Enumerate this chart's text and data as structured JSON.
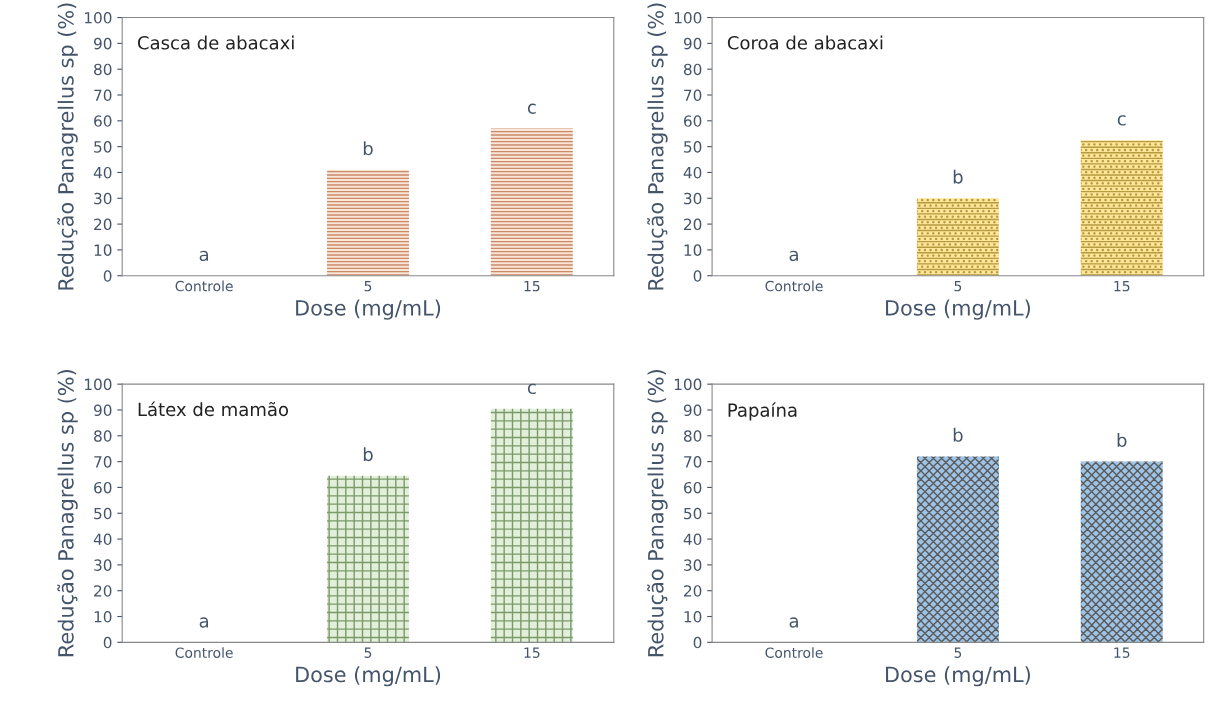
{
  "chart_data": [
    {
      "type": "bar",
      "title": "Casca de abacaxi",
      "xlabel": "Dose (mg/mL)",
      "ylabel": "Redução Panagrellus sp (%)",
      "categories": [
        "Controle",
        "5",
        "15"
      ],
      "values": [
        0,
        41,
        57
      ],
      "color": "#fbe5d6",
      "ylim": [
        0,
        100
      ],
      "yticks": [
        0,
        10,
        20,
        30,
        40,
        50,
        60,
        70,
        80,
        90,
        100
      ],
      "grid": false,
      "legend": false,
      "annotations": [
        {
          "text": "a",
          "x": "Controle",
          "y": 0
        },
        {
          "text": "b",
          "x": "5",
          "y": 41
        },
        {
          "text": "c",
          "x": "15",
          "y": 57
        }
      ]
    },
    {
      "type": "bar",
      "title": "Coroa de abacaxi",
      "xlabel": "Dose (mg/mL)",
      "ylabel": "Redução Panagrellus sp (%)",
      "categories": [
        "Controle",
        "5",
        "15"
      ],
      "values": [
        0,
        30,
        52.5
      ],
      "color": "#ffe699",
      "ylim": [
        0,
        100
      ],
      "yticks": [
        0,
        10,
        20,
        30,
        40,
        50,
        60,
        70,
        80,
        90,
        100
      ],
      "grid": false,
      "legend": false,
      "annotations": [
        {
          "text": "a",
          "x": "Controle",
          "y": 0
        },
        {
          "text": "b",
          "x": "5",
          "y": 30
        },
        {
          "text": "c",
          "x": "15",
          "y": 52.5
        }
      ]
    },
    {
      "type": "bar",
      "title": "Látex de mamão",
      "xlabel": "Dose (mg/mL)",
      "ylabel": "Redução Panagrellus sp (%)",
      "categories": [
        "Controle",
        "5",
        "15"
      ],
      "values": [
        0,
        64.5,
        90.5
      ],
      "color": "#e2efda",
      "ylim": [
        0,
        100
      ],
      "yticks": [
        0,
        10,
        20,
        30,
        40,
        50,
        60,
        70,
        80,
        90,
        100
      ],
      "grid": false,
      "legend": false,
      "annotations": [
        {
          "text": "a",
          "x": "Controle",
          "y": 0
        },
        {
          "text": "b",
          "x": "5",
          "y": 64.5
        },
        {
          "text": "c",
          "x": "15",
          "y": 90.5
        }
      ]
    },
    {
      "type": "bar",
      "title": "Papaína",
      "xlabel": "Dose (mg/mL)",
      "ylabel": "Redução Panagrellus sp (%)",
      "categories": [
        "Controle",
        "5",
        "15"
      ],
      "values": [
        0,
        72,
        70
      ],
      "color": "#9dc3e6",
      "ylim": [
        0,
        100
      ],
      "yticks": [
        0,
        10,
        20,
        30,
        40,
        50,
        60,
        70,
        80,
        90,
        100
      ],
      "grid": false,
      "legend": false,
      "annotations": [
        {
          "text": "a",
          "x": "Controle",
          "y": 0
        },
        {
          "text": "b",
          "x": "5",
          "y": 72
        },
        {
          "text": "b",
          "x": "15",
          "y": 70
        }
      ]
    }
  ]
}
